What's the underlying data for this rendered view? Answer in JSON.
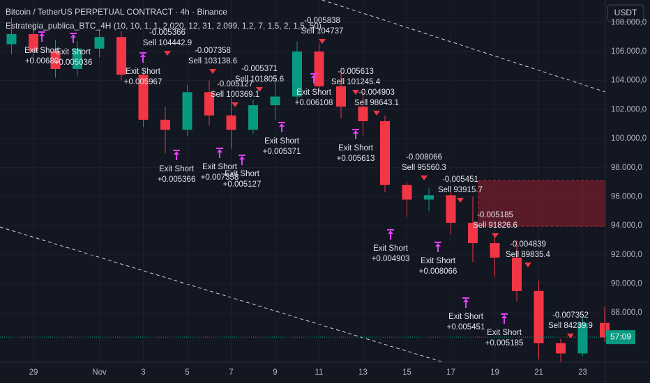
{
  "chart_data": {
    "type": "candlestick",
    "title": "Bitcoin / TetherUS PERPETUAL CONTRACT · 4h · Binance",
    "indicator": "Estrategia_publica_BTC_4H (10, 10, 1, 1, 2.020, 12, 31, 2.099, 1,2, 7, 1,5, 2, 1,5, 50)",
    "currency": "USDT",
    "countdown": "57:09",
    "categories": [
      null,
      "29",
      null,
      null,
      "Nov",
      null,
      "3",
      null,
      "5",
      null,
      "7",
      null,
      "9",
      null,
      "11",
      null,
      "13",
      null,
      "15",
      null,
      "17",
      null,
      "19",
      null,
      "21",
      null,
      "23",
      null
    ],
    "open": [
      106500,
      107200,
      106000,
      104800,
      106200,
      107000,
      104400,
      101300,
      100600,
      103200,
      101600,
      100600,
      102300,
      102900,
      106000,
      103600,
      102200,
      101200,
      96800,
      95800,
      96100,
      94200,
      92800,
      91800,
      89500,
      85900,
      85200,
      87300
    ],
    "high": [
      108300,
      108000,
      106800,
      106700,
      107500,
      107400,
      104800,
      102200,
      103700,
      104000,
      102800,
      102700,
      104400,
      106700,
      106600,
      104800,
      103200,
      101600,
      97000,
      96600,
      96300,
      96000,
      93200,
      93000,
      90200,
      86200,
      87700,
      88400
    ],
    "low": [
      105800,
      105600,
      104200,
      104300,
      105600,
      104000,
      100800,
      99000,
      100200,
      100900,
      99300,
      100300,
      101300,
      102600,
      103200,
      101400,
      100200,
      96300,
      94600,
      95000,
      93400,
      91500,
      90500,
      88800,
      84800,
      84600,
      85000,
      86000
    ],
    "close": [
      107200,
      106000,
      104800,
      106200,
      107000,
      104400,
      101300,
      100600,
      103200,
      101600,
      100600,
      102300,
      102900,
      106000,
      103600,
      102200,
      101200,
      96800,
      95800,
      96100,
      94200,
      92800,
      91800,
      89500,
      85900,
      85200,
      87300,
      86300
    ],
    "up_color": "#089981",
    "down_color": "#f23645",
    "ylim": [
      84600,
      109550
    ],
    "yticks": [
      {
        "value": 88000,
        "label": "88.000,0"
      },
      {
        "value": 90000,
        "label": "90.000,0"
      },
      {
        "value": 92000,
        "label": "92.000,0"
      },
      {
        "value": 94000,
        "label": "94.000,0"
      },
      {
        "value": 96000,
        "label": "96.000,0"
      },
      {
        "value": 98000,
        "label": "98.000,0"
      },
      {
        "value": 100000,
        "label": "100.000,0"
      },
      {
        "value": 102000,
        "label": "102.000,0"
      },
      {
        "value": 104000,
        "label": "104.000,0"
      },
      {
        "value": 106000,
        "label": "106.000,0"
      },
      {
        "value": 108000,
        "label": "108.000,0"
      }
    ],
    "grid": true,
    "last_price": 86320,
    "zone": [
      93950,
      97100
    ],
    "exits": [
      {
        "label": "Exit Short",
        "pnl": "+0.00680"
      },
      {
        "label": "Exit Short",
        "pnl": "+0.005036"
      },
      {
        "label": "Exit Short",
        "pnl": "+0.005967"
      },
      {
        "label": "Exit Short",
        "pnl": "+0.005366"
      },
      {
        "label": "Exit Short",
        "pnl": "+0.007358"
      },
      {
        "label": "Exit Short",
        "pnl": "+0.005127"
      },
      {
        "label": "Exit Short",
        "pnl": "+0.005371"
      },
      {
        "label": "Exit Short",
        "pnl": "+0.006108"
      },
      {
        "label": "Exit Short",
        "pnl": "+0.005613"
      },
      {
        "label": "Exit Short",
        "pnl": "+0.004903"
      },
      {
        "label": "Exit Short",
        "pnl": "+0.008066"
      },
      {
        "label": "Exit Short",
        "pnl": "+0.005451"
      },
      {
        "label": "Exit Short",
        "pnl": "+0.005185"
      }
    ],
    "sells": [
      {
        "pnl": "-0.005366",
        "label": "Sell 104442.9"
      },
      {
        "pnl": "-0.007358",
        "label": "Sell 103138.6"
      },
      {
        "pnl": "-0.005127",
        "label": "Sell 100369.1"
      },
      {
        "pnl": "-0.005371",
        "label": "Sell 101805.6"
      },
      {
        "pnl": "-0.005838",
        "label": "Sell 104737"
      },
      {
        "pnl": "-0.005613",
        "label": "Sell 101245.4"
      },
      {
        "pnl": "-0.004903",
        "label": "Sell 98643.1"
      },
      {
        "pnl": "-0.008066",
        "label": "Sell 95560.3"
      },
      {
        "pnl": "-0.005451",
        "label": "Sell 93915.7"
      },
      {
        "pnl": "-0.005185",
        "label": "Sell 91826.6"
      },
      {
        "pnl": "-0.004839",
        "label": "Sell 89835.4"
      },
      {
        "pnl": "-0.007352",
        "label": "Sell 84239.9"
      }
    ]
  }
}
